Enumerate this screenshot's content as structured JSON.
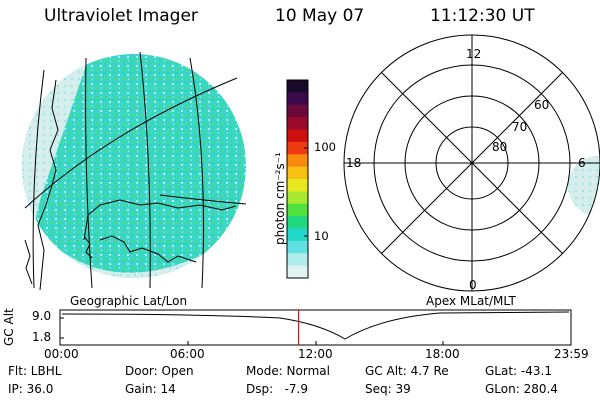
{
  "header": {
    "title": "Ultraviolet Imager",
    "date": "10 May 07",
    "time": "11:12:30 UT"
  },
  "colorbar": {
    "unit_label": "photon cm⁻²s⁻¹",
    "ticks": [
      "100",
      "10"
    ],
    "colors": [
      "#1a0a2a",
      "#3a0a4a",
      "#6a0a3a",
      "#9a0a2a",
      "#cc1010",
      "#ee3a10",
      "#f88a10",
      "#f8c010",
      "#e8e820",
      "#a8e830",
      "#50e040",
      "#20d880",
      "#20d8c8",
      "#60e0e0",
      "#b0ecec",
      "#e0f4f4"
    ]
  },
  "left_map": {
    "caption": "Geographic Lat/Lon",
    "colors": {
      "main": "#3ad7c6",
      "light": "#bfeeee",
      "gray": "#d8dede",
      "green": "#4fde5a"
    }
  },
  "polar_plot": {
    "caption": "Apex MLat/MLT",
    "mlt_labels": {
      "top": "12",
      "left": "18",
      "right": "6",
      "bottom": "0"
    },
    "lat_labels": [
      "80",
      "70",
      "60"
    ]
  },
  "altitude_plot": {
    "ylabel": "GC Alt",
    "yticks": [
      "9.0",
      "1.8"
    ],
    "xticks": [
      "00:00",
      "06:00",
      "12:00",
      "18:00",
      "23:59"
    ],
    "marker_time": "11:12",
    "marker_color": "#e01010"
  },
  "info": {
    "flt": "Flt: LBHL",
    "door": "Door: Open",
    "mode": "Mode: Normal",
    "gc_alt": "GC Alt: 4.7 Re",
    "glat": "GLat: -43.1",
    "ip": "IP: 36.0",
    "gain": "Gain: 14",
    "dsp": "Dsp:   -7.9",
    "seq": "Seq: 39",
    "glon": "GLon: 280.4"
  }
}
